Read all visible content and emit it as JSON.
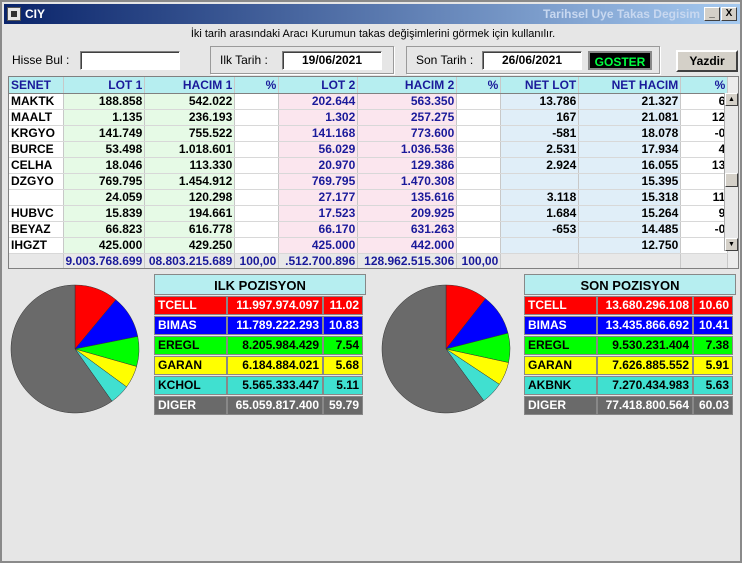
{
  "window": {
    "title_left": "CIY",
    "title_right": "Tarihsel Uye Takas Degisim",
    "minimize_label": "_",
    "close_label": "X"
  },
  "hint": "İki tarih arasındaki  Aracı Kurumun takas değişimlerini görmek için kullanılır.",
  "controls": {
    "hisse_label": "Hisse Bul :",
    "hisse_value": "",
    "ilk_label": "Ilk Tarih :",
    "ilk_value": "19/06/2021",
    "son_label": "Son Tarih :",
    "son_value": "26/06/2021",
    "goster_label": "GOSTER",
    "yazdir_label": "Yazdir"
  },
  "table": {
    "headers": [
      "SENET",
      "LOT 1",
      "HACIM 1",
      "%",
      "LOT 2",
      "HACIM 2",
      "%",
      "NET LOT",
      "NET HACIM",
      "%"
    ],
    "rows": [
      [
        "MAKTK",
        "188.858",
        "542.022",
        "",
        "202.644",
        "563.350",
        "",
        "13.786",
        "21.327",
        "6"
      ],
      [
        "MAALT",
        "1.135",
        "236.193",
        "",
        "1.302",
        "257.275",
        "",
        "167",
        "21.081",
        "12"
      ],
      [
        "KRGYO",
        "141.749",
        "755.522",
        "",
        "141.168",
        "773.600",
        "",
        "-581",
        "18.078",
        "-0"
      ],
      [
        "BURCE",
        "53.498",
        "1.018.601",
        "",
        "56.029",
        "1.036.536",
        "",
        "2.531",
        "17.934",
        "4"
      ],
      [
        "CELHA",
        "18.046",
        "113.330",
        "",
        "20.970",
        "129.386",
        "",
        "2.924",
        "16.055",
        "13"
      ],
      [
        "DZGYO",
        "769.795",
        "1.454.912",
        "",
        "769.795",
        "1.470.308",
        "",
        "",
        "15.395",
        ""
      ],
      [
        "",
        "24.059",
        "120.298",
        "",
        "27.177",
        "135.616",
        "",
        "3.118",
        "15.318",
        "11"
      ],
      [
        "HUBVC",
        "15.839",
        "194.661",
        "",
        "17.523",
        "209.925",
        "",
        "1.684",
        "15.264",
        "9"
      ],
      [
        "BEYAZ",
        "66.823",
        "616.778",
        "",
        "66.170",
        "631.263",
        "",
        "-653",
        "14.485",
        "-0"
      ],
      [
        "IHGZT",
        "425.000",
        "429.250",
        "",
        "425.000",
        "442.000",
        "",
        "",
        "12.750",
        ""
      ]
    ],
    "totals": [
      "",
      "9.003.768.699",
      "08.803.215.689",
      "100,00",
      ".512.700.896",
      "128.962.515.306",
      "100,00",
      "",
      "",
      ""
    ]
  },
  "ilk_pozisyon": {
    "title": "ILK POZISYON",
    "rows": [
      {
        "name": "TCELL",
        "value": "11.997.974.097",
        "pct": "11.02",
        "color": "#ff0000",
        "text": "#ffffff"
      },
      {
        "name": "BIMAS",
        "value": "11.789.222.293",
        "pct": "10.83",
        "color": "#0000ff",
        "text": "#ffffff"
      },
      {
        "name": "EREGL",
        "value": "8.205.984.429",
        "pct": "7.54",
        "color": "#00ff00",
        "text": "#000000"
      },
      {
        "name": "GARAN",
        "value": "6.184.884.021",
        "pct": "5.68",
        "color": "#ffff00",
        "text": "#000000"
      },
      {
        "name": "KCHOL",
        "value": "5.565.333.447",
        "pct": "5.11",
        "color": "#40e0d0",
        "text": "#000000"
      },
      {
        "name": "DIGER",
        "value": "65.059.817.400",
        "pct": "59.79",
        "color": "#6a6a6a",
        "text": "#ffffff"
      }
    ]
  },
  "son_pozisyon": {
    "title": "SON POZISYON",
    "rows": [
      {
        "name": "TCELL",
        "value": "13.680.296.108",
        "pct": "10.60",
        "color": "#ff0000",
        "text": "#ffffff"
      },
      {
        "name": "BIMAS",
        "value": "13.435.866.692",
        "pct": "10.41",
        "color": "#0000ff",
        "text": "#ffffff"
      },
      {
        "name": "EREGL",
        "value": "9.530.231.404",
        "pct": "7.38",
        "color": "#00ff00",
        "text": "#000000"
      },
      {
        "name": "GARAN",
        "value": "7.626.885.552",
        "pct": "5.91",
        "color": "#ffff00",
        "text": "#000000"
      },
      {
        "name": "AKBNK",
        "value": "7.270.434.983",
        "pct": "5.63",
        "color": "#40e0d0",
        "text": "#000000"
      },
      {
        "name": "DIGER",
        "value": "77.418.800.564",
        "pct": "60.03",
        "color": "#6a6a6a",
        "text": "#ffffff"
      }
    ]
  },
  "chart_data": [
    {
      "type": "pie",
      "title": "ILK POZISYON",
      "categories": [
        "TCELL",
        "BIMAS",
        "EREGL",
        "GARAN",
        "KCHOL",
        "DIGER"
      ],
      "values": [
        11.02,
        10.83,
        7.54,
        5.68,
        5.11,
        59.79
      ],
      "colors": [
        "#ff0000",
        "#0000ff",
        "#00ff00",
        "#ffff00",
        "#40e0d0",
        "#6a6a6a"
      ]
    },
    {
      "type": "pie",
      "title": "SON POZISYON",
      "categories": [
        "TCELL",
        "BIMAS",
        "EREGL",
        "GARAN",
        "AKBNK",
        "DIGER"
      ],
      "values": [
        10.6,
        10.41,
        7.38,
        5.91,
        5.63,
        60.03
      ],
      "colors": [
        "#ff0000",
        "#0000ff",
        "#00ff00",
        "#ffff00",
        "#40e0d0",
        "#6a6a6a"
      ]
    }
  ]
}
